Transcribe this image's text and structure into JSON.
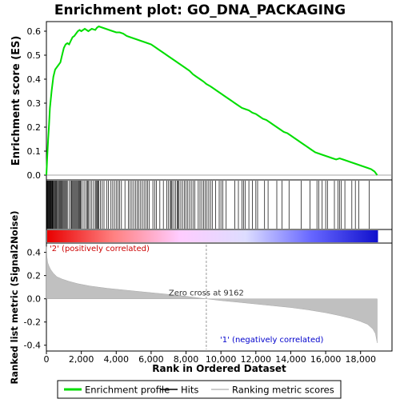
{
  "chart_data": {
    "type": "line",
    "title": "Enrichment plot: GO_DNA_PACKAGING",
    "top_panel": {
      "ylabel": "Enrichment score (ES)",
      "ylim": [
        -0.02,
        0.64
      ],
      "yticks": [
        0.0,
        0.1,
        0.2,
        0.3,
        0.4,
        0.5,
        0.6
      ],
      "ytick_labels": [
        "0.0",
        "0.1",
        "0.2",
        "0.3",
        "0.4",
        "0.5",
        "0.6"
      ],
      "series": [
        {
          "name": "Enrichment profile",
          "color": "#00dd00",
          "x": [
            0,
            50,
            100,
            150,
            200,
            300,
            400,
            500,
            600,
            700,
            800,
            900,
            1000,
            1100,
            1200,
            1300,
            1400,
            1500,
            1600,
            1700,
            1800,
            1900,
            2000,
            2200,
            2400,
            2600,
            2800,
            2900,
            3000,
            3200,
            3400,
            3600,
            3800,
            4000,
            4200,
            4400,
            4600,
            4800,
            5000,
            5200,
            5400,
            5600,
            5800,
            6000,
            6200,
            6400,
            6600,
            6800,
            7000,
            7200,
            7400,
            7600,
            7800,
            8000,
            8200,
            8400,
            8600,
            8800,
            9000,
            9162,
            9400,
            9600,
            9800,
            10000,
            10200,
            10400,
            10600,
            10800,
            11000,
            11200,
            11400,
            11600,
            11800,
            12000,
            12200,
            12400,
            12600,
            12800,
            13000,
            13200,
            13400,
            13600,
            13800,
            14000,
            14200,
            14400,
            14600,
            14800,
            15000,
            15200,
            15400,
            15600,
            15800,
            16000,
            16200,
            16400,
            16600,
            16800,
            17000,
            17200,
            17400,
            17600,
            17800,
            18000,
            18200,
            18400,
            18600,
            18800,
            18950
          ],
          "values": [
            0.0,
            0.08,
            0.15,
            0.21,
            0.28,
            0.35,
            0.41,
            0.44,
            0.45,
            0.46,
            0.47,
            0.5,
            0.53,
            0.545,
            0.55,
            0.545,
            0.56,
            0.575,
            0.58,
            0.59,
            0.6,
            0.605,
            0.6,
            0.61,
            0.6,
            0.61,
            0.605,
            0.615,
            0.62,
            0.615,
            0.61,
            0.605,
            0.6,
            0.595,
            0.595,
            0.59,
            0.58,
            0.575,
            0.57,
            0.565,
            0.56,
            0.555,
            0.55,
            0.545,
            0.535,
            0.525,
            0.515,
            0.505,
            0.495,
            0.485,
            0.475,
            0.465,
            0.455,
            0.445,
            0.435,
            0.42,
            0.41,
            0.4,
            0.39,
            0.38,
            0.37,
            0.36,
            0.35,
            0.34,
            0.33,
            0.32,
            0.31,
            0.3,
            0.29,
            0.28,
            0.275,
            0.27,
            0.26,
            0.255,
            0.245,
            0.235,
            0.23,
            0.22,
            0.21,
            0.2,
            0.19,
            0.18,
            0.175,
            0.165,
            0.155,
            0.145,
            0.135,
            0.125,
            0.115,
            0.105,
            0.095,
            0.09,
            0.085,
            0.08,
            0.075,
            0.07,
            0.065,
            0.07,
            0.065,
            0.06,
            0.055,
            0.05,
            0.045,
            0.04,
            0.035,
            0.03,
            0.025,
            0.015,
            0.0
          ]
        }
      ]
    },
    "hits_panel": {
      "hit_ranks": [
        30,
        60,
        90,
        120,
        150,
        180,
        210,
        240,
        270,
        300,
        330,
        360,
        400,
        440,
        480,
        520,
        560,
        600,
        650,
        700,
        750,
        800,
        850,
        900,
        950,
        1000,
        1050,
        1100,
        1150,
        1200,
        1300,
        1400,
        1450,
        1500,
        1550,
        1600,
        1650,
        1700,
        1750,
        1800,
        1850,
        1900,
        1950,
        2000,
        2100,
        2200,
        2300,
        2350,
        2400,
        2500,
        2600,
        2700,
        2800,
        2850,
        2900,
        2950,
        3000,
        3100,
        3200,
        3300,
        3450,
        3550,
        3700,
        3800,
        3900,
        4000,
        4100,
        4200,
        4300,
        4500,
        4700,
        4800,
        4900,
        5000,
        5100,
        5200,
        5300,
        5400,
        5500,
        5600,
        5700,
        5800,
        5900,
        6100,
        6200,
        6300,
        6500,
        6700,
        6900,
        7000,
        7100,
        7150,
        7200,
        7300,
        7400,
        7500,
        7550,
        7600,
        7700,
        7800,
        7900,
        8000,
        8100,
        8200,
        8300,
        8400,
        8500,
        8700,
        8800,
        8900,
        9000,
        9100,
        9200,
        9300,
        9400,
        9500,
        9700,
        9900,
        10000,
        10100,
        10300,
        10800,
        11000,
        11200,
        11300,
        11400,
        11600,
        11800,
        12000,
        12100,
        12500,
        12700,
        13200,
        13500,
        13900,
        14600,
        15100,
        15500,
        15600,
        15800,
        16000,
        16100,
        16500,
        16700,
        16800,
        16900,
        17100,
        17500,
        17700,
        17900,
        18500
      ],
      "heat_colors": [
        "#e80000",
        "#ff8080",
        "#ffccff",
        "#ddddff",
        "#6666ff",
        "#1010cc"
      ]
    },
    "bottom_panel": {
      "type": "area",
      "ylabel": "Ranked list metric (Signal2Noise)",
      "xlabel": "Rank in Ordered Dataset",
      "ylim": [
        -0.45,
        0.48
      ],
      "yticks": [
        -0.4,
        -0.2,
        0.0,
        0.2,
        0.4
      ],
      "ytick_labels": [
        "-0.4",
        "-0.2",
        "0.0",
        "0.2",
        "0.4"
      ],
      "xlim": [
        0,
        19800
      ],
      "xticks": [
        0,
        2000,
        4000,
        6000,
        8000,
        10000,
        12000,
        14000,
        16000,
        18000
      ],
      "xtick_labels": [
        "0",
        "2,000",
        "4,000",
        "6,000",
        "8,000",
        "10,000",
        "12,000",
        "14,000",
        "16,000",
        "18,000"
      ],
      "metric_x": [
        0,
        30,
        80,
        150,
        250,
        400,
        600,
        900,
        1300,
        1800,
        2500,
        3500,
        4500,
        5500,
        6500,
        7500,
        8500,
        9162,
        10000,
        11000,
        12000,
        13000,
        14000,
        15000,
        16000,
        16800,
        17500,
        18000,
        18400,
        18700,
        18850,
        18950
      ],
      "metric_values": [
        0.45,
        0.36,
        0.31,
        0.28,
        0.25,
        0.22,
        0.19,
        0.17,
        0.15,
        0.13,
        0.11,
        0.09,
        0.075,
        0.06,
        0.045,
        0.03,
        0.012,
        0.0,
        -0.015,
        -0.03,
        -0.045,
        -0.06,
        -0.075,
        -0.095,
        -0.12,
        -0.145,
        -0.17,
        -0.195,
        -0.22,
        -0.26,
        -0.3,
        -0.38
      ],
      "zero_cross_label": "Zero cross at 9162",
      "zero_cross_rank": 9162,
      "pos_label": "'2' (positively correlated)",
      "neg_label": "'1' (negatively correlated)",
      "pos_color": "#cc0000",
      "neg_color": "#0000cc"
    },
    "legend": {
      "placement": "bottom",
      "items": [
        {
          "label": "Enrichment profile",
          "color": "#00dd00",
          "kind": "line"
        },
        {
          "label": "Hits",
          "color": "#000000",
          "kind": "line"
        },
        {
          "label": "Ranking metric scores",
          "color": "#bbbbbb",
          "kind": "line"
        }
      ]
    }
  }
}
